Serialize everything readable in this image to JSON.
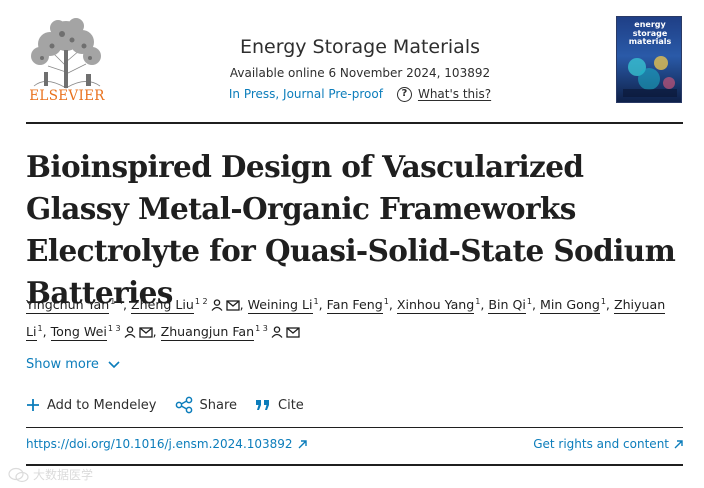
{
  "publisher": {
    "name": "ELSEVIER"
  },
  "journal": {
    "title": "Energy Storage Materials",
    "availability": "Available online 6 November 2024, 103892",
    "status": "In Press, Journal Pre-proof",
    "whats_this": "What's this?",
    "cover_title": "energy storage materials"
  },
  "article": {
    "title": "Bioinspired Design of Vascularized Glassy Metal-Organic Frameworks Electrolyte for Quasi-Solid-State Sodium Batteries"
  },
  "authors": [
    {
      "name": "Yingchun Yan",
      "aff": "1 4",
      "corresponding": false
    },
    {
      "name": "Zheng Liu",
      "aff": "1 2",
      "corresponding": true
    },
    {
      "name": "Weining Li",
      "aff": "1",
      "corresponding": false
    },
    {
      "name": "Fan Feng",
      "aff": "1",
      "corresponding": false
    },
    {
      "name": "Xinhou Yang",
      "aff": "1",
      "corresponding": false
    },
    {
      "name": "Bin Qi",
      "aff": "1",
      "corresponding": false
    },
    {
      "name": "Min Gong",
      "aff": "1",
      "corresponding": false
    },
    {
      "name": "Zhiyuan Li",
      "aff": "1",
      "corresponding": false
    },
    {
      "name": "Tong Wei",
      "aff": "1 3",
      "corresponding": true
    },
    {
      "name": "Zhuangjun Fan",
      "aff": "1 3",
      "corresponding": true
    }
  ],
  "show_more": "Show more",
  "actions": {
    "mendeley": "Add to Mendeley",
    "share": "Share",
    "cite": "Cite"
  },
  "links": {
    "doi": "https://doi.org/10.1016/j.ensm.2024.103892",
    "rights": "Get rights and content"
  },
  "watermark": "大数据医学",
  "colors": {
    "link": "#0c7dbb",
    "elsevier_orange": "#e9711c",
    "text": "#1f1f1f"
  },
  "icons": [
    "elsevier-tree-logo",
    "question-circle-icon",
    "person-icon",
    "envelope-icon",
    "chevron-down-icon",
    "plus-icon",
    "share-icon",
    "quote-icon",
    "arrow-up-right-icon"
  ]
}
